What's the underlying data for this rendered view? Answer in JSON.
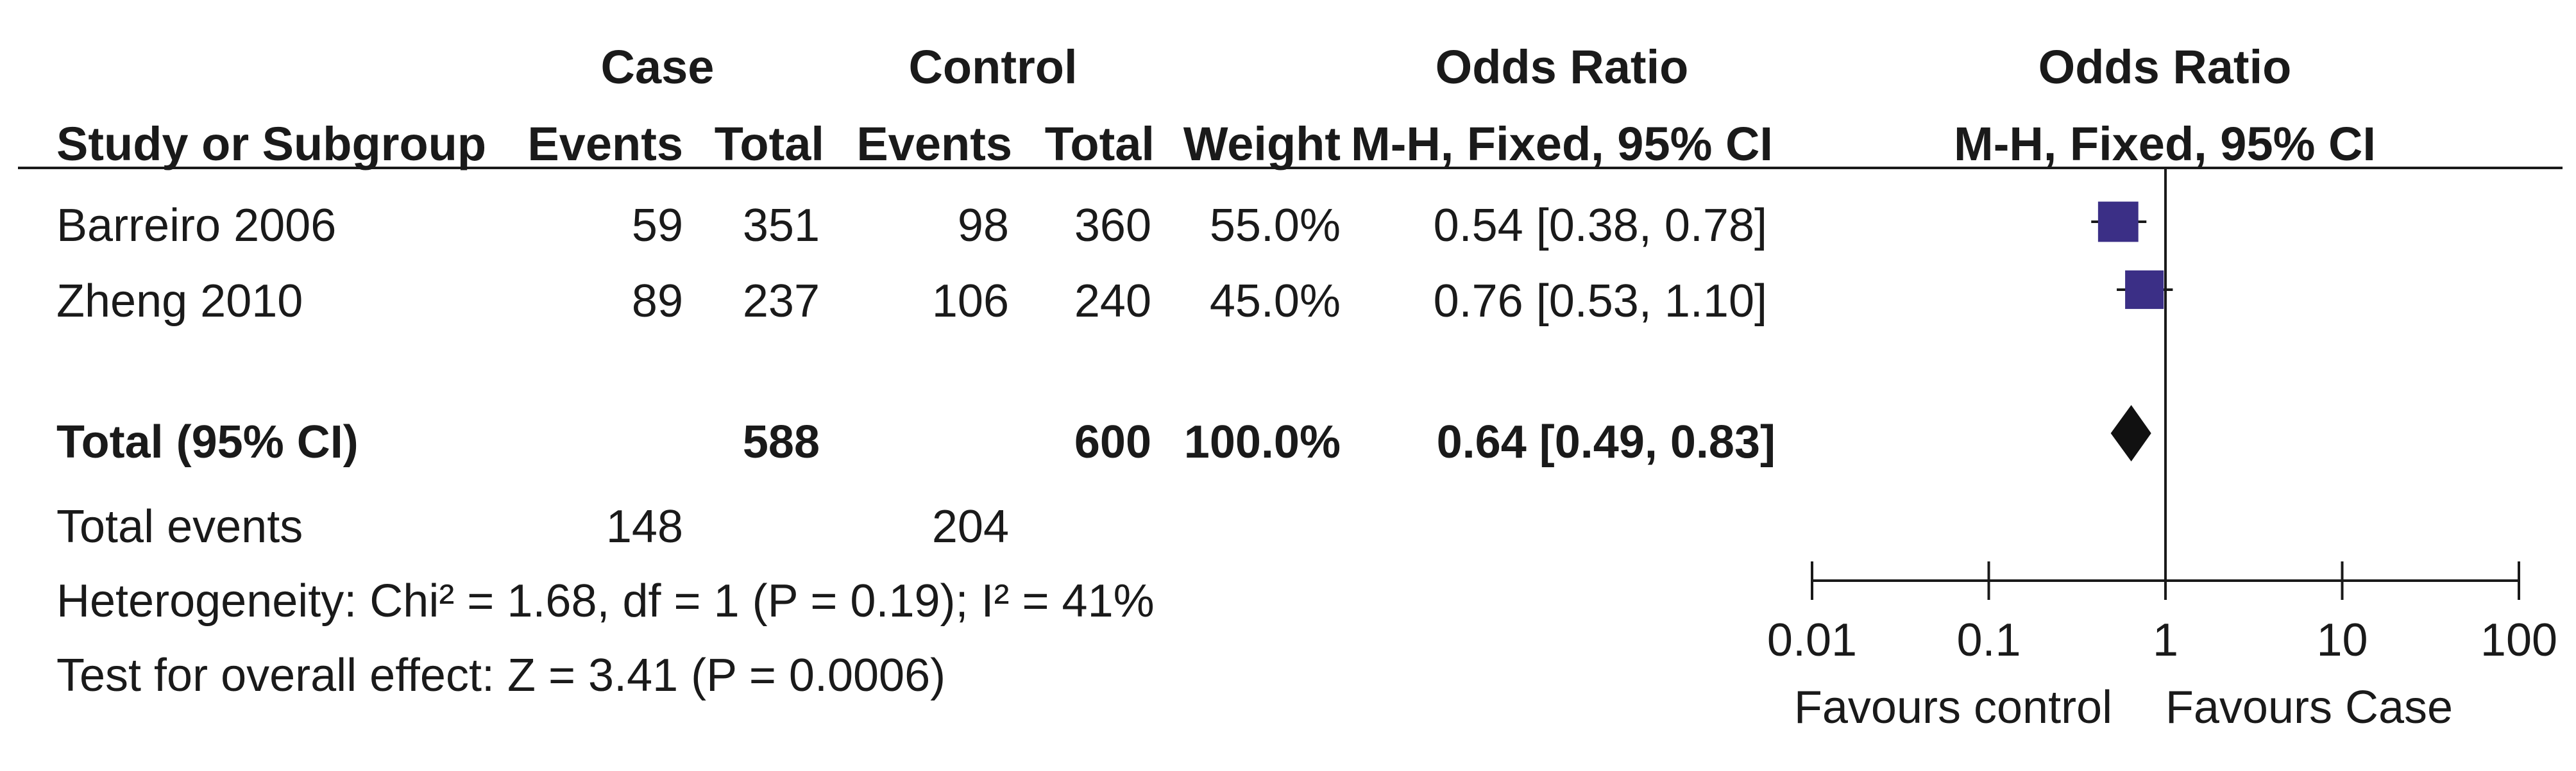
{
  "header": {
    "group_case": "Case",
    "group_control": "Control",
    "group_or": "Odds Ratio",
    "group_or_plot": "Odds Ratio",
    "col_study": "Study or Subgroup",
    "col_case_events": "Events",
    "col_case_total": "Total",
    "col_ctrl_events": "Events",
    "col_ctrl_total": "Total",
    "col_weight": "Weight",
    "col_or": "M-H, Fixed, 95% CI",
    "col_or_plot": "M-H, Fixed, 95% CI"
  },
  "studies": [
    {
      "name": "Barreiro 2006",
      "case_events": "59",
      "case_total": "351",
      "ctrl_events": "98",
      "ctrl_total": "360",
      "weight": "55.0%",
      "or_text": "0.54 [0.38, 0.78]"
    },
    {
      "name": "Zheng 2010",
      "case_events": "89",
      "case_total": "237",
      "ctrl_events": "106",
      "ctrl_total": "240",
      "weight": "45.0%",
      "or_text": "0.76 [0.53, 1.10]"
    }
  ],
  "total": {
    "label": "Total (95% CI)",
    "case_total": "588",
    "ctrl_total": "600",
    "weight": "100.0%",
    "or_text": "0.64 [0.49, 0.83]"
  },
  "total_events": {
    "label": "Total events",
    "case": "148",
    "ctrl": "204"
  },
  "heterogeneity": "Heterogeneity: Chi² = 1.68, df = 1 (P = 0.19); I² = 41%",
  "overall_effect": "Test for overall effect: Z = 3.41 (P = 0.0006)",
  "axis": {
    "ticks": [
      "0.01",
      "0.1",
      "1",
      "10",
      "100"
    ],
    "favours_left": "Favours control",
    "favours_right": "Favours Case"
  },
  "colors": {
    "study_marker": "#3b2f86",
    "summary_marker": "#111111",
    "lines": "#1a1a1a"
  },
  "chart_data": {
    "type": "forest",
    "scale": "log",
    "xlim": [
      0.01,
      100
    ],
    "reference_line": 1,
    "xticks": [
      0.01,
      0.1,
      1,
      10,
      100
    ],
    "studies": [
      {
        "name": "Barreiro 2006",
        "or": 0.54,
        "ci": [
          0.38,
          0.78
        ],
        "weight": 55.0
      },
      {
        "name": "Zheng 2010",
        "or": 0.76,
        "ci": [
          0.53,
          1.1
        ],
        "weight": 45.0
      }
    ],
    "pooled": {
      "name": "Total (95% CI)",
      "or": 0.64,
      "ci": [
        0.49,
        0.83
      ],
      "weight": 100.0
    }
  }
}
